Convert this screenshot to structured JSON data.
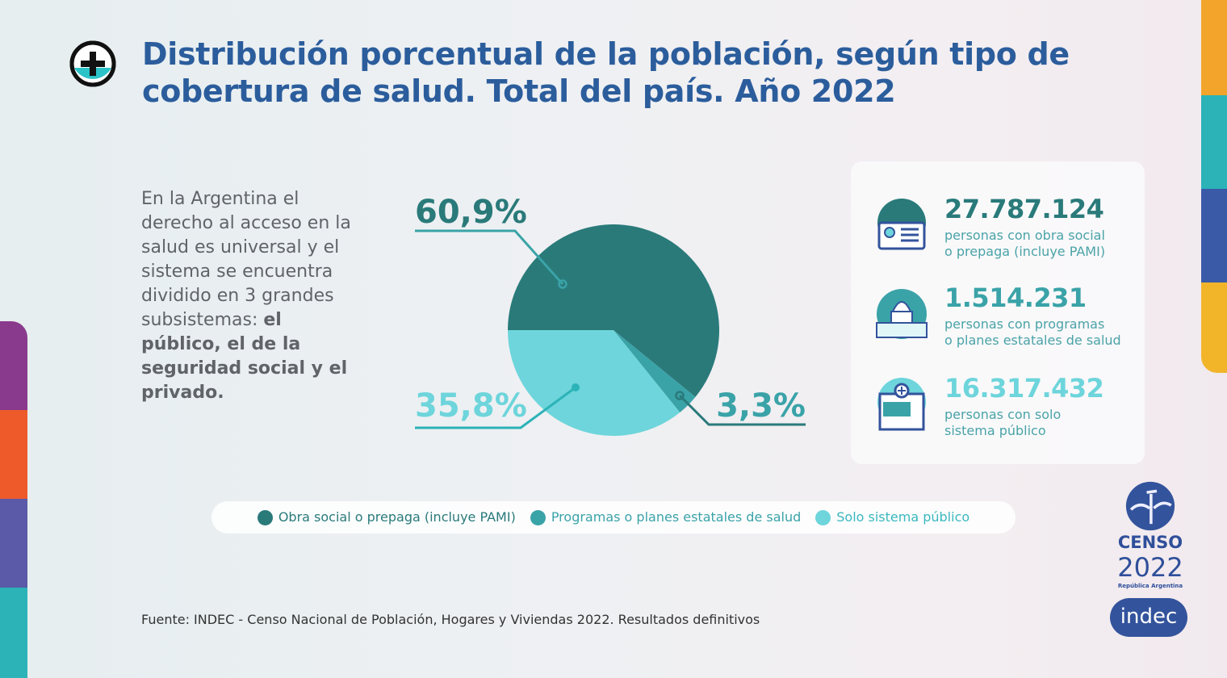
{
  "title": "Distribución porcentual de la población, según tipo de cobertura de salud. Total del país. Año 2022",
  "intro": {
    "text": "En la Argentina el derecho al acceso en la salud es universal y el sistema se encuentra dividido en 3 grandes subsistemas: ",
    "bold": "el público, el de la seguridad social y el privado."
  },
  "chart_data": {
    "type": "pie",
    "categories": [
      "Obra social o prepaga (incluye PAMI)",
      "Programas o planes estatales de salud",
      "Solo sistema público"
    ],
    "values": [
      60.9,
      3.3,
      35.8
    ],
    "labels": [
      "60,9%",
      "3,3%",
      "35,8%"
    ],
    "colors": [
      "#2a7a7a",
      "#3aa3a8",
      "#6dd5db"
    ],
    "legend": "bottom"
  },
  "stats": [
    {
      "number": "27.787.124",
      "desc1": "personas con obra social",
      "desc2": "o prepaga (incluye PAMI)",
      "color": "#2a7a7a",
      "icon": "id-card-icon"
    },
    {
      "number": "1.514.231",
      "desc1": "personas con programas",
      "desc2": "o planes estatales de salud",
      "color": "#3aa3a8",
      "icon": "congress-building-icon"
    },
    {
      "number": "16.317.432",
      "desc1": "personas con solo",
      "desc2": "sistema público",
      "color": "#6dd5db",
      "icon": "hospital-icon"
    }
  ],
  "source": "Fuente: INDEC - Censo Nacional de Población, Hogares y Viviendas 2022. Resultados definitivos",
  "logos": {
    "censo1": "CENSO",
    "censo2": "2022",
    "censo3": "República Argentina",
    "indec": "indec"
  }
}
